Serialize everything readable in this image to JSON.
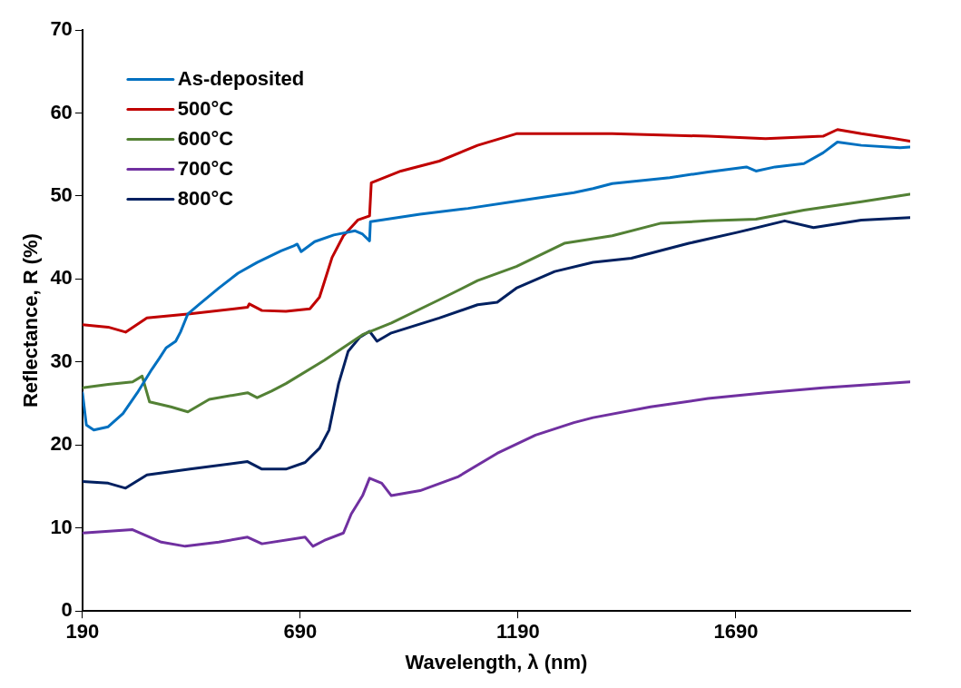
{
  "chart_data": {
    "type": "line",
    "xlabel": "Wavelength, λ (nm)",
    "ylabel": "Reflectance, R (%)",
    "xlim": [
      190,
      2090
    ],
    "xticks": [
      190,
      690,
      1190,
      1690
    ],
    "ylim": [
      0,
      70
    ],
    "yticks": [
      0,
      10,
      20,
      30,
      40,
      50,
      60,
      70
    ],
    "grid": false,
    "legend": "top left",
    "marker": "none",
    "line_style": "solid",
    "series": [
      {
        "name": "As-deposited",
        "color": "#0070c0",
        "x": [
          190,
          199,
          216,
          249,
          283,
          316,
          349,
          366,
          382,
          404,
          415,
          432,
          459,
          503,
          547,
          591,
          646,
          675,
          683,
          692,
          723,
          767,
          816,
          833,
          849,
          851,
          965,
          1075,
          1188,
          1318,
          1362,
          1406,
          1538,
          1626,
          1714,
          1736,
          1780,
          1846,
          1890,
          1923,
          1978,
          2067,
          2089
        ],
        "values": [
          26.3,
          22.4,
          21.8,
          22.2,
          23.8,
          26.3,
          29.1,
          30.4,
          31.7,
          32.5,
          33.6,
          35.8,
          37.0,
          38.9,
          40.7,
          42.0,
          43.4,
          44.0,
          44.2,
          43.3,
          44.5,
          45.3,
          45.8,
          45.4,
          44.6,
          46.9,
          47.8,
          48.5,
          49.4,
          50.4,
          50.9,
          51.5,
          52.2,
          52.9,
          53.5,
          53.0,
          53.5,
          53.9,
          55.2,
          56.5,
          56.1,
          55.8,
          55.9
        ]
      },
      {
        "name": "500°C",
        "color": "#c00000",
        "x": [
          190,
          249,
          289,
          338,
          437,
          569,
          573,
          602,
          657,
          712,
          734,
          745,
          763,
          789,
          822,
          849,
          853,
          921,
          1009,
          1097,
          1186,
          1406,
          1626,
          1758,
          1890,
          1923,
          1978,
          2044,
          2089
        ],
        "values": [
          34.5,
          34.2,
          33.6,
          35.3,
          35.8,
          36.6,
          37.0,
          36.2,
          36.1,
          36.4,
          37.8,
          39.6,
          42.6,
          45.2,
          47.1,
          47.6,
          51.6,
          53.0,
          54.2,
          56.1,
          57.5,
          57.5,
          57.2,
          56.9,
          57.2,
          58.0,
          57.5,
          57.0,
          56.6
        ]
      },
      {
        "name": "600°C",
        "color": "#538135",
        "x": [
          190,
          249,
          305,
          327,
          344,
          393,
          432,
          481,
          569,
          591,
          624,
          657,
          745,
          833,
          899,
          1009,
          1097,
          1186,
          1296,
          1406,
          1516,
          1626,
          1736,
          1846,
          1978,
          2089
        ],
        "values": [
          26.9,
          27.3,
          27.6,
          28.3,
          25.2,
          24.6,
          24.0,
          25.5,
          26.3,
          25.7,
          26.5,
          27.4,
          30.2,
          33.3,
          34.7,
          37.5,
          39.8,
          41.5,
          44.3,
          45.2,
          46.7,
          47.0,
          47.2,
          48.3,
          49.3,
          50.2
        ]
      },
      {
        "name": "700°C",
        "color": "#7030a0",
        "x": [
          190,
          305,
          371,
          426,
          503,
          569,
          602,
          701,
          719,
          745,
          789,
          807,
          833,
          849,
          877,
          899,
          965,
          1053,
          1142,
          1230,
          1318,
          1362,
          1494,
          1626,
          1758,
          1890,
          2089
        ],
        "values": [
          9.4,
          9.8,
          8.3,
          7.8,
          8.3,
          8.9,
          8.1,
          8.9,
          7.8,
          8.5,
          9.4,
          11.7,
          13.9,
          16.0,
          15.4,
          13.9,
          14.5,
          16.2,
          19.0,
          21.2,
          22.7,
          23.3,
          24.6,
          25.6,
          26.3,
          26.9,
          27.6
        ]
      },
      {
        "name": "800°C",
        "color": "#002060",
        "x": [
          190,
          249,
          289,
          338,
          437,
          569,
          602,
          657,
          701,
          734,
          756,
          778,
          800,
          827,
          849,
          866,
          899,
          1009,
          1097,
          1142,
          1186,
          1274,
          1362,
          1450,
          1582,
          1692,
          1802,
          1868,
          1978,
          2089
        ],
        "values": [
          15.6,
          15.4,
          14.8,
          16.4,
          17.1,
          18.0,
          17.1,
          17.1,
          17.9,
          19.6,
          21.8,
          27.4,
          31.3,
          33.0,
          33.7,
          32.5,
          33.5,
          35.3,
          36.9,
          37.2,
          38.9,
          40.9,
          42.0,
          42.5,
          44.3,
          45.6,
          47.0,
          46.2,
          47.1,
          47.4
        ]
      }
    ]
  }
}
